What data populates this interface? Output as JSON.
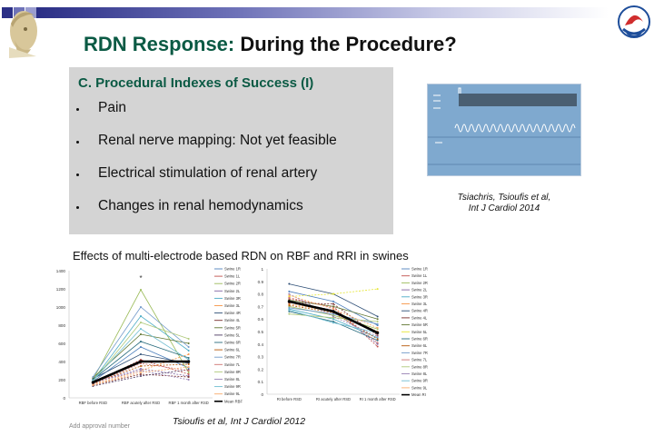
{
  "colors": {
    "title_green": "#0b5a44",
    "title_black": "#111111",
    "box_gray": "#d4d4d4",
    "header_navy": "#2b2f86"
  },
  "header": {
    "bar_colors": [
      "#2b2f86",
      "#6e72b8",
      "#9a9dcf",
      "#c7c9e6"
    ]
  },
  "logos": {
    "left": "athena-head-logo",
    "right": "hellenic-society-emblem"
  },
  "slide": {
    "title_part1": "RDN Response: ",
    "title_part2": "During the Procedure?",
    "box_heading": "C. Procedural Indexes of Success (I)",
    "bullets": [
      "Pain",
      "Renal nerve mapping: Not yet feasible",
      "Electrical stimulation of renal artery",
      "Changes in renal hemodynamics"
    ],
    "monitor_image": "hemodynamic-monitor-tracing",
    "citation1_line1": "Tsiachris, Tsioufis  et al,",
    "citation1_line2": "Int J Cardiol 2014",
    "effects_caption": "Effects of multi-electrode based RDN  on  RBF and RRI in swines",
    "citation2": "Tsioufis  et al, Int J Cardiol 2012",
    "approval": "Add approval number"
  },
  "chart_data": [
    {
      "type": "line",
      "title": "",
      "categories": [
        "RBF before RSD",
        "RBF acutely after RSD",
        "RBF 1 month after RSD"
      ],
      "ylim": [
        0,
        1400
      ],
      "yticks": [
        0,
        200,
        400,
        600,
        800,
        1000,
        1200,
        1400
      ],
      "annotation": "*",
      "legend_position": "right",
      "series": [
        {
          "name": "Swine 1R",
          "color": "#4f81bd",
          "values": [
            180,
            560,
            330
          ]
        },
        {
          "name": "Swine 1L",
          "color": "#c0504d",
          "values": [
            160,
            420,
            260
          ]
        },
        {
          "name": "Swine 2R",
          "color": "#9bbb59",
          "values": [
            200,
            1190,
            280
          ]
        },
        {
          "name": "Swine 2L",
          "color": "#8064a2",
          "values": [
            170,
            320,
            240
          ]
        },
        {
          "name": "Swine 3R",
          "color": "#4bacc6",
          "values": [
            190,
            900,
            520
          ]
        },
        {
          "name": "Swine 3L",
          "color": "#f79646",
          "values": [
            150,
            300,
            480
          ]
        },
        {
          "name": "Swine 4R",
          "color": "#2c4d75",
          "values": [
            210,
            480,
            380
          ]
        },
        {
          "name": "Swine 4L",
          "color": "#772c2a",
          "values": [
            140,
            260,
            230
          ]
        },
        {
          "name": "Swine 5R",
          "color": "#5f7530",
          "values": [
            220,
            700,
            600
          ]
        },
        {
          "name": "Swine 5L",
          "color": "#4d3b62",
          "values": [
            130,
            240,
            310
          ]
        },
        {
          "name": "Swine 6R",
          "color": "#276a7c",
          "values": [
            200,
            620,
            440
          ]
        },
        {
          "name": "Swine 6L",
          "color": "#b65708",
          "values": [
            160,
            350,
            370
          ]
        },
        {
          "name": "Swine 7R",
          "color": "#729aca",
          "values": [
            230,
            1000,
            560
          ]
        },
        {
          "name": "Swine 7L",
          "color": "#cd7371",
          "values": [
            150,
            380,
            300
          ]
        },
        {
          "name": "Swine 8R",
          "color": "#afc97a",
          "values": [
            180,
            830,
            650
          ]
        },
        {
          "name": "Swine 8L",
          "color": "#9983b5",
          "values": [
            170,
            300,
            200
          ]
        },
        {
          "name": "Swine 9R",
          "color": "#6fbdd1",
          "values": [
            190,
            760,
            420
          ]
        },
        {
          "name": "Swine 9L",
          "color": "#f9ab6b",
          "values": [
            140,
            280,
            340
          ]
        },
        {
          "name": "Mean RBF",
          "color": "#000000",
          "values": [
            170,
            400,
            400
          ]
        }
      ]
    },
    {
      "type": "line",
      "title": "",
      "categories": [
        "RI before RSD",
        "RI acutely after RSD",
        "RI 1 month after RSD"
      ],
      "ylim": [
        0,
        1
      ],
      "yticks": [
        0,
        0.1,
        0.2,
        0.3,
        0.4,
        0.5,
        0.6,
        0.7,
        0.8,
        0.9,
        1
      ],
      "legend_position": "right",
      "series": [
        {
          "name": "Swine 1R",
          "color": "#4f81bd",
          "values": [
            0.82,
            0.74,
            0.55
          ]
        },
        {
          "name": "Swine 1L",
          "color": "#c0504d",
          "values": [
            0.76,
            0.7,
            0.38
          ]
        },
        {
          "name": "Swine 2R",
          "color": "#9bbb59",
          "values": [
            0.7,
            0.63,
            0.52
          ]
        },
        {
          "name": "Swine 2L",
          "color": "#8064a2",
          "values": [
            0.74,
            0.67,
            0.4
          ]
        },
        {
          "name": "Swine 3R",
          "color": "#4bacc6",
          "values": [
            0.68,
            0.6,
            0.45
          ]
        },
        {
          "name": "Swine 3L",
          "color": "#f79646",
          "values": [
            0.72,
            0.66,
            0.5
          ]
        },
        {
          "name": "Swine 4R",
          "color": "#2c4d75",
          "values": [
            0.88,
            0.8,
            0.62
          ]
        },
        {
          "name": "Swine 4L",
          "color": "#772c2a",
          "values": [
            0.73,
            0.72,
            0.47
          ]
        },
        {
          "name": "Swine 5R",
          "color": "#5f7530",
          "values": [
            0.75,
            0.7,
            0.6
          ]
        },
        {
          "name": "Swine 5L",
          "color": "#e6e632",
          "values": [
            0.78,
            0.8,
            0.84
          ]
        },
        {
          "name": "Swine 6R",
          "color": "#276a7c",
          "values": [
            0.66,
            0.58,
            0.43
          ]
        },
        {
          "name": "Swine 6L",
          "color": "#b65708",
          "values": [
            0.71,
            0.65,
            0.44
          ]
        },
        {
          "name": "Swine 7R",
          "color": "#729aca",
          "values": [
            0.69,
            0.64,
            0.56
          ]
        },
        {
          "name": "Swine 7L",
          "color": "#cd7371",
          "values": [
            0.77,
            0.69,
            0.41
          ]
        },
        {
          "name": "Swine 8R",
          "color": "#afc97a",
          "values": [
            0.64,
            0.61,
            0.58
          ]
        },
        {
          "name": "Swine 8L",
          "color": "#9983b5",
          "values": [
            0.8,
            0.62,
            0.46
          ]
        },
        {
          "name": "Swine 9R",
          "color": "#6fbdd1",
          "values": [
            0.67,
            0.57,
            0.49
          ]
        },
        {
          "name": "Swine 9L",
          "color": "#f9ab6b",
          "values": [
            0.79,
            0.68,
            0.53
          ]
        },
        {
          "name": "Mean RI",
          "color": "#000000",
          "values": [
            0.74,
            0.66,
            0.49
          ]
        }
      ]
    }
  ]
}
